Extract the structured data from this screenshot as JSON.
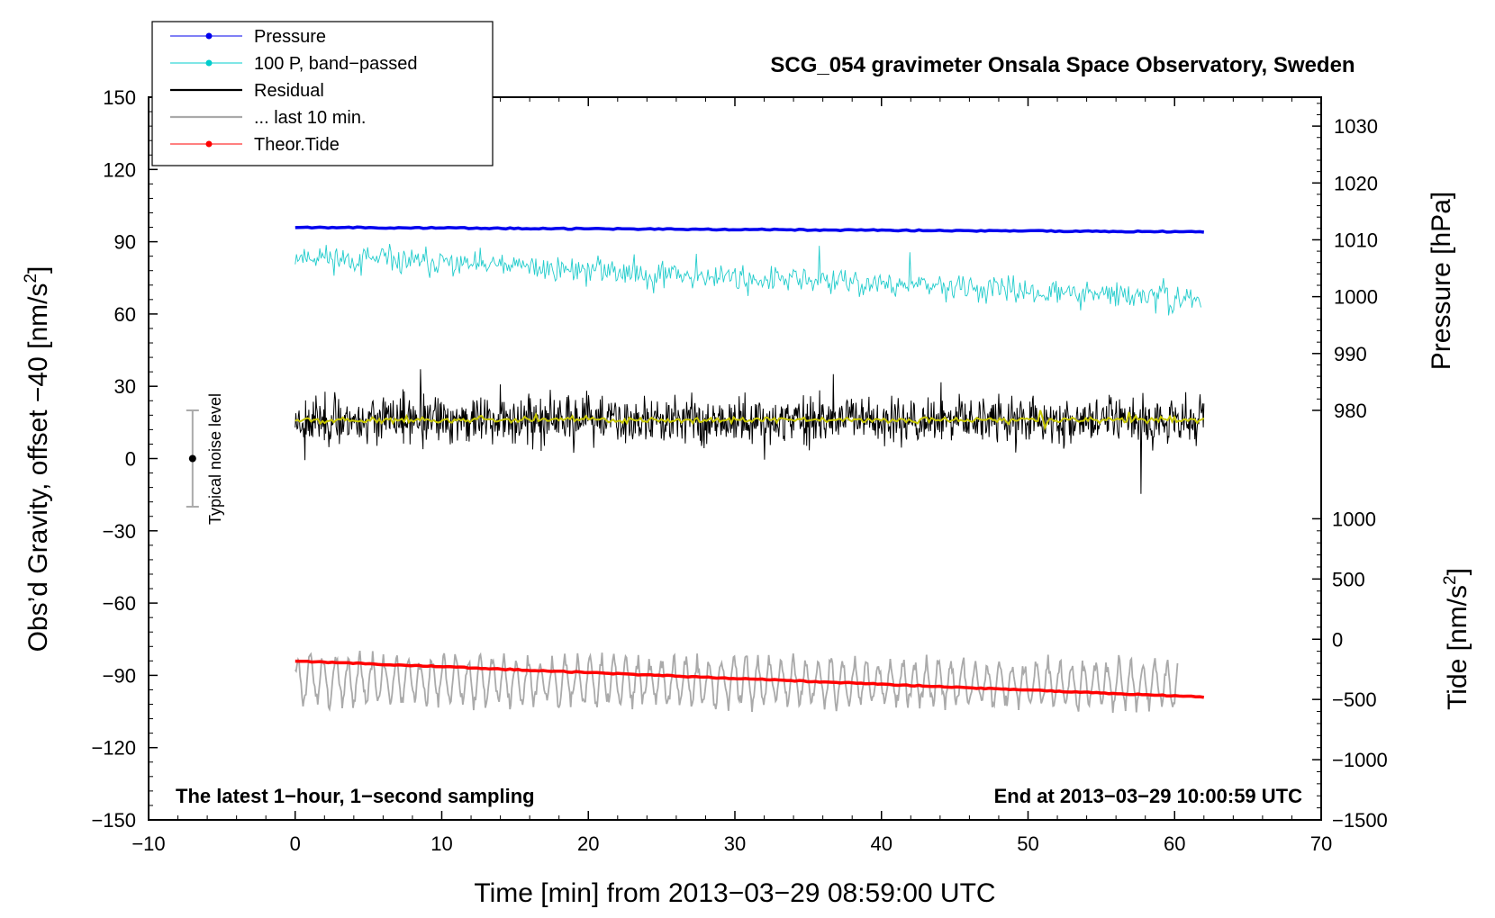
{
  "chart_data": {
    "type": "line",
    "title": "SCG_054 gravimeter Onsala Space Observatory, Sweden",
    "xlabel": "Time [min] from 2013−03−29 08:59:00 UTC",
    "ylabel_left_prefix": "Obs’d Gravity, offset −40 [nm/s",
    "ylabel_left_suffix": "]",
    "ylabel_pressure": "Pressure [hPa]",
    "ylabel_tide_prefix": "Tide [nm/s",
    "ylabel_tide_suffix": "]",
    "unit_sup": "2",
    "xlim": [
      -10,
      70
    ],
    "ylim": [
      -150,
      150
    ],
    "xticks": [
      -10,
      0,
      10,
      20,
      30,
      40,
      50,
      60,
      70
    ],
    "xtick_labels": [
      "−10",
      "0",
      "10",
      "20",
      "30",
      "40",
      "50",
      "60",
      "70"
    ],
    "yticks": [
      -150,
      -120,
      -90,
      -60,
      -30,
      0,
      30,
      60,
      90,
      120,
      150
    ],
    "ytick_labels": [
      "−150",
      "−120",
      "−90",
      "−60",
      "−30",
      "0",
      "30",
      "60",
      "90",
      "120",
      "150"
    ],
    "pressure_axis": {
      "ticks": [
        980,
        990,
        1000,
        1010,
        1020,
        1030
      ],
      "tick_labels": [
        "980",
        "990",
        "1000",
        "1010",
        "1020",
        "1030"
      ],
      "map_ref": [
        [
          980,
          20
        ],
        [
          1030,
          138
        ]
      ]
    },
    "tide_axis": {
      "ticks": [
        -1500,
        -1000,
        -500,
        0,
        500,
        1000
      ],
      "tick_labels": [
        "−1500",
        "−1000",
        "−500",
        "0",
        "500",
        "1000"
      ],
      "map_ref": [
        [
          -1500,
          -150
        ],
        [
          1000,
          -25
        ]
      ]
    },
    "legend": [
      {
        "label": "Pressure",
        "color": "#0000ee",
        "marker": true
      },
      {
        "label": "100 P, band−passed",
        "color": "#00cccc",
        "marker": true
      },
      {
        "label": "Residual",
        "color": "#000000",
        "marker": false
      },
      {
        "label": "... last 10 min.",
        "color": "#aaaaaa",
        "marker": false
      },
      {
        "label": "Theor.Tide",
        "color": "#ff0000",
        "marker": true
      }
    ],
    "legend_position": "top-left",
    "annotations": {
      "left_note": "The latest 1−hour, 1−second sampling",
      "right_note": "End at 2013−03−29 10:00:59 UTC",
      "noise_label": "Typical noise level",
      "noise_bar": {
        "x": -7,
        "center": 0,
        "low": -20,
        "high": 20
      }
    },
    "series": [
      {
        "name": "Pressure",
        "color": "#0000ee",
        "kind": "trend",
        "unit": "hPa",
        "x_range": [
          0,
          62
        ],
        "start": 1012.2,
        "end": 1011.4,
        "noise": 0.1
      },
      {
        "name": "100 P, band−passed",
        "color": "#22cccc",
        "kind": "noisy",
        "unit": "nm/s2",
        "x_range": [
          0,
          61.8
        ],
        "start": 84,
        "end": 66,
        "amplitude": 5,
        "seed": 11
      },
      {
        "name": "Residual",
        "color": "#000000",
        "kind": "noisy",
        "unit": "nm/s2",
        "x_range": [
          0,
          62
        ],
        "start": 16,
        "end": 16,
        "amplitude": 9,
        "seed": 23
      },
      {
        "name": "Residual smoothed",
        "color": "#c8c800",
        "kind": "noisy",
        "unit": "nm/s2",
        "x_range": [
          0,
          62
        ],
        "start": 16,
        "end": 16,
        "amplitude": 1.2,
        "seed": 5
      },
      {
        "name": "... last 10 min.",
        "color": "#aaaaaa",
        "kind": "oscillating",
        "unit": "nm/s2",
        "x_range": [
          0,
          60.2
        ],
        "start": -92,
        "end": -94,
        "amplitude": 9,
        "seed": 37
      },
      {
        "name": "Theor.Tide",
        "color": "#ff0000",
        "kind": "trend",
        "unit": "nm/s2",
        "x_range": [
          0,
          62
        ],
        "start": -84,
        "end": -99,
        "noise": 0.2
      }
    ]
  }
}
